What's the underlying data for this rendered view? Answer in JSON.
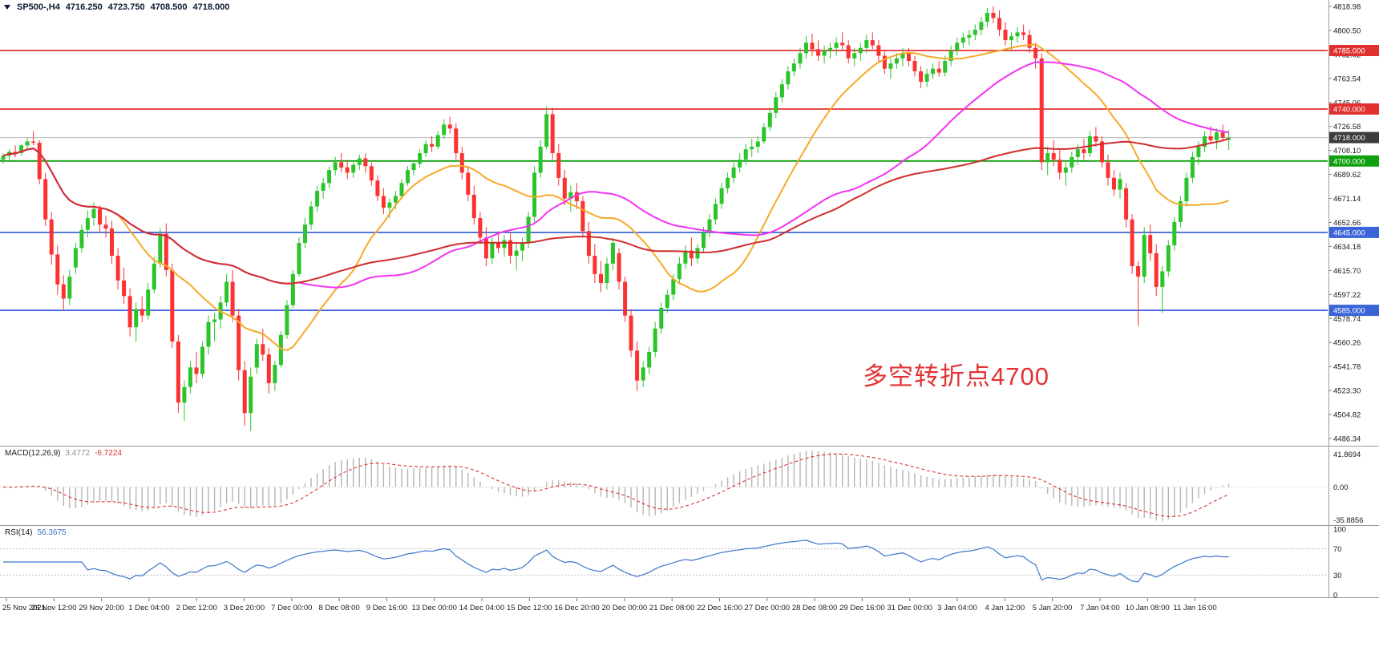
{
  "header": {
    "symbol_tf": "SP500-,H4",
    "open": "4716.250",
    "high": "4723.750",
    "low": "4708.500",
    "close": "4718.000"
  },
  "colors": {
    "up": "#2bc42b",
    "down": "#fa3232",
    "ma_fast": "#f7a928",
    "ma_mid": "#f233f2",
    "ma_slow": "#cf2e2e",
    "hline_red": "#e03030",
    "hline_green": "#0fa00f",
    "hline_blue": "#3a64d8",
    "current_line": "#b8b8b8",
    "current_badge": "#3c3c3c",
    "macd_hist": "#b5b5b5",
    "macd_signal": "#e03030",
    "rsi_line": "#3b74c9",
    "axis_text": "#1a1a1a"
  },
  "price_axis": {
    "max": 4823.9,
    "min": 4480.8,
    "ticks": [
      4818.98,
      4800.5,
      4782.02,
      4763.54,
      4745.06,
      4726.58,
      4708.1,
      4689.62,
      4671.14,
      4652.66,
      4634.18,
      4615.7,
      4597.22,
      4578.74,
      4560.26,
      4541.78,
      4523.3,
      4504.82,
      4486.34
    ]
  },
  "hlines": [
    {
      "price": 4785,
      "label": "4785.000",
      "color": "#e03030"
    },
    {
      "price": 4740,
      "label": "4740.000",
      "color": "#e03030"
    },
    {
      "price": 4700,
      "label": "4700.000",
      "color": "#0fa00f"
    },
    {
      "price": 4645,
      "label": "4645.000",
      "color": "#3a64d8"
    },
    {
      "price": 4585,
      "label": "4585.000",
      "color": "#3a64d8"
    }
  ],
  "current_price": {
    "price": 4718,
    "label": "4718.000"
  },
  "annotation": {
    "text": "多空转折点4700",
    "color": "#e23333"
  },
  "indicators": {
    "macd": {
      "label": "MACD(12,26,9)",
      "main_value": "3.4772",
      "signal_value": "-6.7224",
      "axis_top": "41.8694",
      "axis_zero": "0.00",
      "axis_bottom": "-35.8856",
      "fast": 12,
      "slow": 26,
      "signal": 9
    },
    "rsi": {
      "label": "RSI(14)",
      "value": "56.3675",
      "period": 14,
      "axis": [
        "100",
        "70",
        "30",
        "0"
      ],
      "levels": [
        70,
        30
      ]
    }
  },
  "chart_data": {
    "type": "candlestick",
    "symbol": "SP500-",
    "timeframe": "H4",
    "title": "SP500-,H4 4716.250 4723.750 4708.500 4718.000",
    "price_range": [
      4480.8,
      4823.9
    ],
    "grid": false,
    "x_labels": [
      "25 Nov 2021",
      "26 Nov 12:00",
      "29 Nov 20:00",
      "1 Dec 04:00",
      "2 Dec 12:00",
      "3 Dec 20:00",
      "7 Dec 00:00",
      "8 Dec 08:00",
      "9 Dec 16:00",
      "13 Dec 00:00",
      "14 Dec 04:00",
      "15 Dec 12:00",
      "16 Dec 20:00",
      "20 Dec 00:00",
      "21 Dec 08:00",
      "22 Dec 16:00",
      "27 Dec 00:00",
      "28 Dec 08:00",
      "29 Dec 16:00",
      "31 Dec 00:00",
      "3 Jan 04:00",
      "4 Jan 12:00",
      "5 Jan 20:00",
      "7 Jan 04:00",
      "10 Jan 08:00",
      "11 Jan 16:00"
    ],
    "moving_averages": [
      {
        "name": "MA20",
        "period": 20,
        "color": "#f7a928"
      },
      {
        "name": "MA50",
        "period": 50,
        "color": "#f233f2"
      },
      {
        "name": "MA100",
        "period": 100,
        "color": "#cf2e2e"
      }
    ],
    "candles": [
      [
        4701,
        4706,
        4698,
        4704
      ],
      [
        4704,
        4709,
        4701,
        4707
      ],
      [
        4707,
        4712,
        4703,
        4706
      ],
      [
        4706,
        4713,
        4704,
        4712
      ],
      [
        4712,
        4718,
        4709,
        4715
      ],
      [
        4715,
        4723,
        4712,
        4714
      ],
      [
        4714,
        4716,
        4682,
        4686
      ],
      [
        4686,
        4691,
        4650,
        4655
      ],
      [
        4655,
        4661,
        4620,
        4628
      ],
      [
        4628,
        4635,
        4597,
        4605
      ],
      [
        4605,
        4612,
        4585,
        4594
      ],
      [
        4594,
        4616,
        4589,
        4611
      ],
      [
        4618,
        4637,
        4613,
        4633
      ],
      [
        4633,
        4651,
        4629,
        4647
      ],
      [
        4647,
        4662,
        4641,
        4656
      ],
      [
        4656,
        4668,
        4650,
        4663
      ],
      [
        4663,
        4666,
        4645,
        4651
      ],
      [
        4651,
        4658,
        4641,
        4648
      ],
      [
        4648,
        4654,
        4621,
        4627
      ],
      [
        4627,
        4633,
        4601,
        4608
      ],
      [
        4608,
        4618,
        4590,
        4596
      ],
      [
        4596,
        4602,
        4565,
        4572
      ],
      [
        4572,
        4591,
        4561,
        4586
      ],
      [
        4586,
        4596,
        4576,
        4581
      ],
      [
        4581,
        4606,
        4578,
        4601
      ],
      [
        4601,
        4626,
        4598,
        4621
      ],
      [
        4621,
        4648,
        4618,
        4644
      ],
      [
        4644,
        4652,
        4611,
        4616
      ],
      [
        4616,
        4621,
        4556,
        4561
      ],
      [
        4561,
        4566,
        4506,
        4514
      ],
      [
        4514,
        4531,
        4500,
        4526
      ],
      [
        4526,
        4546,
        4521,
        4541
      ],
      [
        4541,
        4553,
        4529,
        4536
      ],
      [
        4536,
        4561,
        4533,
        4557
      ],
      [
        4557,
        4581,
        4551,
        4576
      ],
      [
        4576,
        4583,
        4561,
        4578
      ],
      [
        4578,
        4596,
        4571,
        4591
      ],
      [
        4591,
        4613,
        4588,
        4607
      ],
      [
        4607,
        4616,
        4576,
        4581
      ],
      [
        4581,
        4586,
        4531,
        4539
      ],
      [
        4539,
        4546,
        4496,
        4506
      ],
      [
        4506,
        4541,
        4492,
        4534
      ],
      [
        4541,
        4563,
        4536,
        4559
      ],
      [
        4559,
        4571,
        4546,
        4551
      ],
      [
        4551,
        4556,
        4521,
        4529
      ],
      [
        4529,
        4546,
        4523,
        4543
      ],
      [
        4543,
        4569,
        4541,
        4566
      ],
      [
        4566,
        4593,
        4563,
        4589
      ],
      [
        4589,
        4616,
        4587,
        4613
      ],
      [
        4613,
        4641,
        4611,
        4637
      ],
      [
        4637,
        4656,
        4633,
        4651
      ],
      [
        4651,
        4669,
        4647,
        4665
      ],
      [
        4665,
        4681,
        4661,
        4677
      ],
      [
        4677,
        4687,
        4671,
        4683
      ],
      [
        4683,
        4696,
        4679,
        4693
      ],
      [
        4693,
        4703,
        4689,
        4699
      ],
      [
        4699,
        4706,
        4691,
        4695
      ],
      [
        4695,
        4701,
        4686,
        4691
      ],
      [
        4691,
        4699,
        4687,
        4697
      ],
      [
        4697,
        4705,
        4693,
        4702
      ],
      [
        4702,
        4706,
        4691,
        4696
      ],
      [
        4696,
        4699,
        4681,
        4685
      ],
      [
        4685,
        4689,
        4669,
        4673
      ],
      [
        4673,
        4679,
        4659,
        4664
      ],
      [
        4664,
        4671,
        4656,
        4668
      ],
      [
        4668,
        4677,
        4663,
        4673
      ],
      [
        4673,
        4686,
        4671,
        4683
      ],
      [
        4683,
        4696,
        4681,
        4693
      ],
      [
        4693,
        4701,
        4689,
        4698
      ],
      [
        4698,
        4709,
        4695,
        4706
      ],
      [
        4706,
        4716,
        4703,
        4713
      ],
      [
        4713,
        4719,
        4707,
        4711
      ],
      [
        4711,
        4723,
        4709,
        4720
      ],
      [
        4720,
        4732,
        4717,
        4728
      ],
      [
        4728,
        4734,
        4721,
        4725
      ],
      [
        4725,
        4729,
        4701,
        4706
      ],
      [
        4706,
        4711,
        4686,
        4691
      ],
      [
        4691,
        4696,
        4669,
        4674
      ],
      [
        4674,
        4681,
        4651,
        4656
      ],
      [
        4656,
        4661,
        4636,
        4641
      ],
      [
        4641,
        4649,
        4619,
        4625
      ],
      [
        4625,
        4641,
        4621,
        4637
      ],
      [
        4637,
        4646,
        4629,
        4633
      ],
      [
        4633,
        4643,
        4626,
        4639
      ],
      [
        4639,
        4645,
        4621,
        4627
      ],
      [
        4627,
        4636,
        4616,
        4631
      ],
      [
        4631,
        4641,
        4623,
        4637
      ],
      [
        4637,
        4661,
        4633,
        4657
      ],
      [
        4657,
        4696,
        4653,
        4691
      ],
      [
        4691,
        4716,
        4687,
        4711
      ],
      [
        4711,
        4742,
        4709,
        4736
      ],
      [
        4736,
        4741,
        4701,
        4706
      ],
      [
        4706,
        4713,
        4681,
        4687
      ],
      [
        4687,
        4693,
        4666,
        4671
      ],
      [
        4671,
        4681,
        4661,
        4676
      ],
      [
        4676,
        4683,
        4663,
        4669
      ],
      [
        4669,
        4673,
        4641,
        4646
      ],
      [
        4646,
        4653,
        4621,
        4627
      ],
      [
        4627,
        4636,
        4606,
        4613
      ],
      [
        4613,
        4623,
        4599,
        4606
      ],
      [
        4606,
        4626,
        4601,
        4621
      ],
      [
        4621,
        4641,
        4616,
        4637
      ],
      [
        4629,
        4633,
        4601,
        4607
      ],
      [
        4607,
        4611,
        4576,
        4581
      ],
      [
        4581,
        4586,
        4549,
        4554
      ],
      [
        4554,
        4561,
        4523,
        4531
      ],
      [
        4531,
        4546,
        4526,
        4541
      ],
      [
        4541,
        4557,
        4536,
        4553
      ],
      [
        4553,
        4576,
        4549,
        4571
      ],
      [
        4571,
        4591,
        4567,
        4587
      ],
      [
        4587,
        4601,
        4583,
        4597
      ],
      [
        4597,
        4613,
        4593,
        4609
      ],
      [
        4609,
        4626,
        4605,
        4621
      ],
      [
        4621,
        4635,
        4617,
        4631
      ],
      [
        4631,
        4641,
        4619,
        4625
      ],
      [
        4625,
        4636,
        4621,
        4633
      ],
      [
        4633,
        4649,
        4629,
        4645
      ],
      [
        4645,
        4659,
        4641,
        4655
      ],
      [
        4655,
        4671,
        4651,
        4667
      ],
      [
        4667,
        4683,
        4663,
        4679
      ],
      [
        4679,
        4691,
        4675,
        4687
      ],
      [
        4687,
        4699,
        4683,
        4695
      ],
      [
        4695,
        4706,
        4691,
        4701
      ],
      [
        4701,
        4713,
        4697,
        4709
      ],
      [
        4709,
        4717,
        4703,
        4711
      ],
      [
        4711,
        4719,
        4706,
        4715
      ],
      [
        4715,
        4729,
        4713,
        4726
      ],
      [
        4726,
        4741,
        4723,
        4737
      ],
      [
        4737,
        4753,
        4733,
        4749
      ],
      [
        4749,
        4763,
        4745,
        4759
      ],
      [
        4759,
        4773,
        4755,
        4769
      ],
      [
        4769,
        4779,
        4765,
        4775
      ],
      [
        4775,
        4787,
        4771,
        4783
      ],
      [
        4783,
        4796,
        4779,
        4791
      ],
      [
        4791,
        4798,
        4781,
        4786
      ],
      [
        4786,
        4793,
        4777,
        4781
      ],
      [
        4781,
        4789,
        4775,
        4785
      ],
      [
        4785,
        4791,
        4779,
        4787
      ],
      [
        4787,
        4795,
        4781,
        4791
      ],
      [
        4791,
        4799,
        4785,
        4789
      ],
      [
        4789,
        4793,
        4775,
        4779
      ],
      [
        4779,
        4787,
        4773,
        4783
      ],
      [
        4783,
        4791,
        4777,
        4787
      ],
      [
        4787,
        4797,
        4783,
        4793
      ],
      [
        4793,
        4799,
        4786,
        4789
      ],
      [
        4789,
        4793,
        4776,
        4781
      ],
      [
        4781,
        4785,
        4767,
        4771
      ],
      [
        4771,
        4779,
        4763,
        4775
      ],
      [
        4775,
        4783,
        4771,
        4779
      ],
      [
        4779,
        4787,
        4773,
        4783
      ],
      [
        4783,
        4787,
        4773,
        4777
      ],
      [
        4777,
        4781,
        4765,
        4769
      ],
      [
        4769,
        4773,
        4756,
        4761
      ],
      [
        4761,
        4771,
        4757,
        4767
      ],
      [
        4767,
        4775,
        4763,
        4771
      ],
      [
        4771,
        4777,
        4765,
        4768
      ],
      [
        4768,
        4781,
        4765,
        4777
      ],
      [
        4777,
        4789,
        4773,
        4785
      ],
      [
        4785,
        4795,
        4781,
        4791
      ],
      [
        4791,
        4799,
        4787,
        4795
      ],
      [
        4795,
        4801,
        4789,
        4797
      ],
      [
        4797,
        4805,
        4793,
        4801
      ],
      [
        4801,
        4811,
        4797,
        4807
      ],
      [
        4807,
        4818,
        4803,
        4814
      ],
      [
        4814,
        4819,
        4806,
        4810
      ],
      [
        4810,
        4816,
        4796,
        4801
      ],
      [
        4801,
        4807,
        4789,
        4793
      ],
      [
        4793,
        4799,
        4785,
        4796
      ],
      [
        4796,
        4803,
        4791,
        4799
      ],
      [
        4799,
        4805,
        4793,
        4797
      ],
      [
        4797,
        4801,
        4783,
        4787
      ],
      [
        4787,
        4791,
        4771,
        4779
      ],
      [
        4779,
        4783,
        4693,
        4699
      ],
      [
        4699,
        4711,
        4689,
        4706
      ],
      [
        4706,
        4716,
        4696,
        4701
      ],
      [
        4701,
        4709,
        4686,
        4691
      ],
      [
        4691,
        4699,
        4681,
        4695
      ],
      [
        4695,
        4707,
        4691,
        4703
      ],
      [
        4703,
        4713,
        4697,
        4709
      ],
      [
        4709,
        4717,
        4701,
        4706
      ],
      [
        4706,
        4723,
        4703,
        4719
      ],
      [
        4719,
        4726,
        4711,
        4715
      ],
      [
        4715,
        4719,
        4695,
        4699
      ],
      [
        4699,
        4705,
        4681,
        4687
      ],
      [
        4687,
        4693,
        4673,
        4678
      ],
      [
        4678,
        4691,
        4671,
        4686
      ],
      [
        4679,
        4683,
        4649,
        4655
      ],
      [
        4655,
        4659,
        4613,
        4619
      ],
      [
        4619,
        4623,
        4573,
        4611
      ],
      [
        4611,
        4649,
        4606,
        4643
      ],
      [
        4643,
        4651,
        4623,
        4629
      ],
      [
        4629,
        4636,
        4596,
        4603
      ],
      [
        4603,
        4619,
        4583,
        4615
      ],
      [
        4615,
        4639,
        4611,
        4635
      ],
      [
        4635,
        4657,
        4631,
        4653
      ],
      [
        4653,
        4673,
        4649,
        4669
      ],
      [
        4669,
        4691,
        4665,
        4687
      ],
      [
        4687,
        4707,
        4683,
        4703
      ],
      [
        4703,
        4715,
        4697,
        4711
      ],
      [
        4711,
        4723,
        4707,
        4719
      ],
      [
        4719,
        4727,
        4713,
        4716
      ],
      [
        4716,
        4725,
        4709,
        4722
      ],
      [
        4722,
        4728,
        4715,
        4718
      ],
      [
        4716.25,
        4723.75,
        4708.5,
        4718
      ]
    ]
  }
}
